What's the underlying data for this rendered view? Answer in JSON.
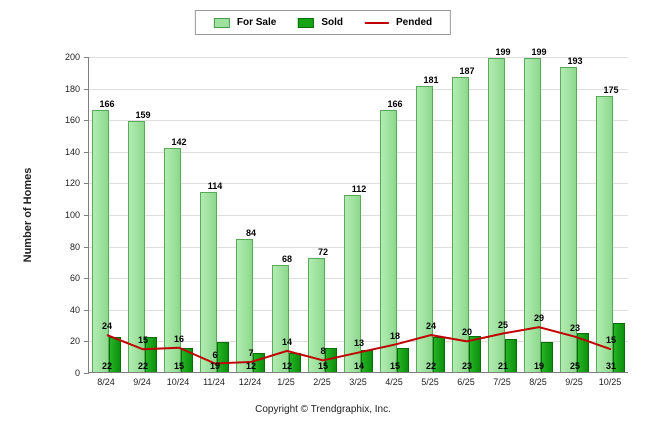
{
  "legend": {
    "for_sale": "For Sale",
    "sold": "Sold",
    "pended": "Pended"
  },
  "footer": {
    "text": "Copyright © Trendgraphix, Inc."
  },
  "colors": {
    "for_sale": "#9be09b",
    "sold": "#12a012",
    "pended": "#c00000"
  },
  "chart_data": {
    "type": "bar",
    "title": "",
    "ylabel": "Number of Homes",
    "xlabel": "",
    "ylim": [
      0,
      200
    ],
    "ytick_step": 20,
    "grid": true,
    "legend_position": "top",
    "categories": [
      "8/24",
      "9/24",
      "10/24",
      "11/24",
      "12/24",
      "1/25",
      "2/25",
      "3/25",
      "4/25",
      "5/25",
      "6/25",
      "7/25",
      "8/25",
      "9/25",
      "10/25"
    ],
    "series": [
      {
        "name": "For Sale",
        "type": "bar",
        "label_position": "above",
        "values": [
          166,
          159,
          142,
          114,
          84,
          68,
          72,
          112,
          166,
          181,
          187,
          199,
          199,
          193,
          175
        ]
      },
      {
        "name": "Sold",
        "type": "bar",
        "label_position": "base",
        "values": [
          22,
          22,
          15,
          19,
          12,
          12,
          15,
          14,
          15,
          22,
          23,
          21,
          19,
          25,
          31
        ]
      },
      {
        "name": "Pended",
        "type": "line",
        "label_position": "above",
        "values": [
          24,
          15,
          16,
          6,
          7,
          14,
          8,
          13,
          18,
          24,
          20,
          25,
          29,
          23,
          15
        ]
      }
    ]
  }
}
